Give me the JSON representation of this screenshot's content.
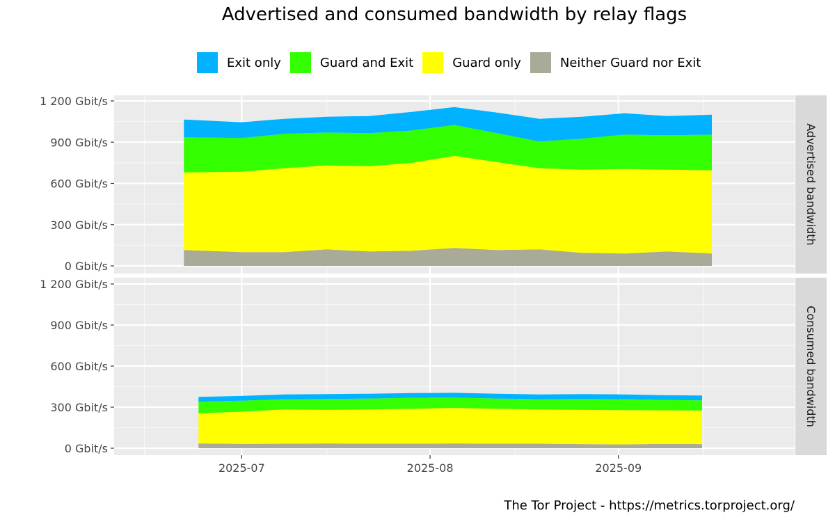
{
  "chart_data": {
    "type": "area",
    "title": "Advertised and consumed bandwidth by relay flags",
    "caption": "The Tor Project - https://metrics.torproject.org/",
    "legend_position": "top",
    "stacked": true,
    "y_unit": "Gbit/s",
    "ylim": [
      0,
      1200
    ],
    "y_ticks": [
      "0 Gbit/s",
      "300 Gbit/s",
      "600 Gbit/s",
      "900 Gbit/s",
      "1 200 Gbit/s"
    ],
    "x_ticks": [
      "2025-07",
      "2025-08",
      "2025-09"
    ],
    "xlim": [
      "2025-06-10",
      "2025-09-30"
    ],
    "grid": true,
    "series_styles": [
      {
        "name": "Exit only",
        "color": "#00b2ff"
      },
      {
        "name": "Guard and Exit",
        "color": "#33ff00"
      },
      {
        "name": "Guard only",
        "color": "#ffff00"
      },
      {
        "name": "Neither Guard nor Exit",
        "color": "#aaaa99"
      }
    ],
    "x": [
      "2025-06-24",
      "2025-07-01",
      "2025-07-08",
      "2025-07-15",
      "2025-07-22",
      "2025-07-29",
      "2025-08-05",
      "2025-08-12",
      "2025-08-19",
      "2025-08-26",
      "2025-09-02",
      "2025-09-09",
      "2025-09-15"
    ],
    "panels": [
      {
        "label": "Advertised bandwidth",
        "series": [
          {
            "name": "Neither Guard nor Exit",
            "values": [
              115,
              100,
              100,
              120,
              105,
              110,
              130,
              115,
              120,
              95,
              90,
              105,
              90
            ]
          },
          {
            "name": "Guard only",
            "values": [
              565,
              585,
              610,
              610,
              620,
              640,
              670,
              640,
              590,
              605,
              615,
              595,
              605
            ]
          },
          {
            "name": "Guard and Exit",
            "values": [
              255,
              245,
              250,
              240,
              240,
              235,
              225,
              210,
              195,
              225,
              250,
              250,
              260
            ]
          },
          {
            "name": "Exit only",
            "values": [
              130,
              115,
              110,
              115,
              125,
              135,
              130,
              150,
              165,
              160,
              155,
              140,
              145
            ]
          }
        ]
      },
      {
        "label": "Consumed bandwidth",
        "series": [
          {
            "name": "Neither Guard nor Exit",
            "values": [
              35,
              32,
              33,
              35,
              33,
              33,
              35,
              33,
              33,
              30,
              28,
              32,
              30
            ]
          },
          {
            "name": "Guard only",
            "values": [
              220,
              235,
              250,
              245,
              250,
              255,
              260,
              255,
              250,
              250,
              250,
              245,
              245
            ]
          },
          {
            "name": "Guard and Exit",
            "values": [
              85,
              80,
              75,
              80,
              80,
              80,
              75,
              75,
              75,
              80,
              80,
              75,
              75
            ]
          },
          {
            "name": "Exit only",
            "values": [
              35,
              35,
              35,
              35,
              35,
              35,
              35,
              35,
              35,
              35,
              35,
              35,
              35
            ]
          }
        ]
      }
    ]
  }
}
